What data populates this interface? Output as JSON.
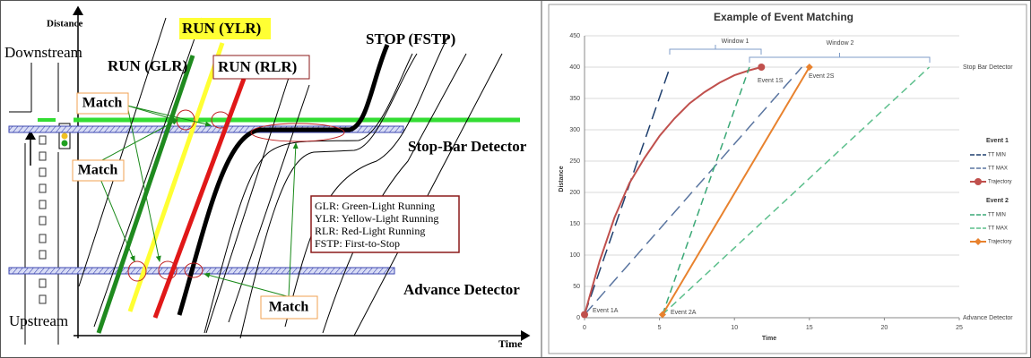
{
  "diagram": {
    "axis_y": "Distance",
    "axis_x": "Time",
    "downstream": "Downstream",
    "upstream": "Upstream",
    "run_glr": "RUN (GLR)",
    "run_ylr": "RUN (YLR)",
    "run_rlr": "RUN (RLR)",
    "stop_fstp": "STOP (FSTP)",
    "stop_bar_detector": "Stop-Bar Detector",
    "advance_detector": "Advance Detector",
    "match": [
      "Match",
      "Match",
      "Match"
    ],
    "legend": [
      "GLR: Green-Light Running",
      "YLR: Yellow-Light Running",
      "RLR: Red-Light Running",
      "FSTP: First-to-Stop"
    ]
  },
  "chart_data": {
    "type": "line",
    "title": "Example of Event Matching",
    "x_label": "Time",
    "y_label": "Distance",
    "xlim": [
      0,
      25
    ],
    "xticks": [
      0,
      5,
      10,
      15,
      20,
      25
    ],
    "ylim": [
      0,
      450
    ],
    "yticks": [
      0,
      50,
      100,
      150,
      200,
      250,
      300,
      350,
      400,
      450
    ],
    "grid": true,
    "annotations": [
      "Window 1",
      "Window 2",
      "Stop Bar Detector",
      "Advance Detector",
      "Event 1A",
      "Event 1S",
      "Event 2A",
      "Event 2S"
    ],
    "series": [
      {
        "group": "Event 1",
        "name": "TT MIN",
        "color": "#1f3f6e",
        "dash": "14,7",
        "x": [
          0,
          5.7
        ],
        "values": [
          5,
          400
        ]
      },
      {
        "group": "Event 1",
        "name": "TT MAX",
        "color": "#5a75a0",
        "dash": "14,7",
        "x": [
          0,
          14.5
        ],
        "values": [
          5,
          400
        ]
      },
      {
        "group": "Event 1",
        "name": "Trajectory",
        "color": "#c0504d",
        "marker": "circle",
        "x": [
          0,
          1,
          2,
          3,
          4,
          5,
          6,
          7,
          8,
          9,
          10,
          11,
          11.8
        ],
        "values": [
          5,
          90,
          160,
          215,
          255,
          290,
          318,
          342,
          360,
          375,
          387,
          395,
          400
        ]
      },
      {
        "group": "Event 2",
        "name": "TT MIN",
        "color": "#3aa876",
        "dash": "8,5",
        "x": [
          5.2,
          11
        ],
        "values": [
          5,
          400
        ]
      },
      {
        "group": "Event 2",
        "name": "TT MAX",
        "color": "#5cbf8c",
        "dash": "8,5",
        "x": [
          5.2,
          23
        ],
        "values": [
          5,
          400
        ]
      },
      {
        "group": "Event 2",
        "name": "Trajectory",
        "color": "#e8822e",
        "marker": "diamond",
        "x": [
          5.2,
          15
        ],
        "values": [
          5,
          400
        ]
      }
    ]
  }
}
